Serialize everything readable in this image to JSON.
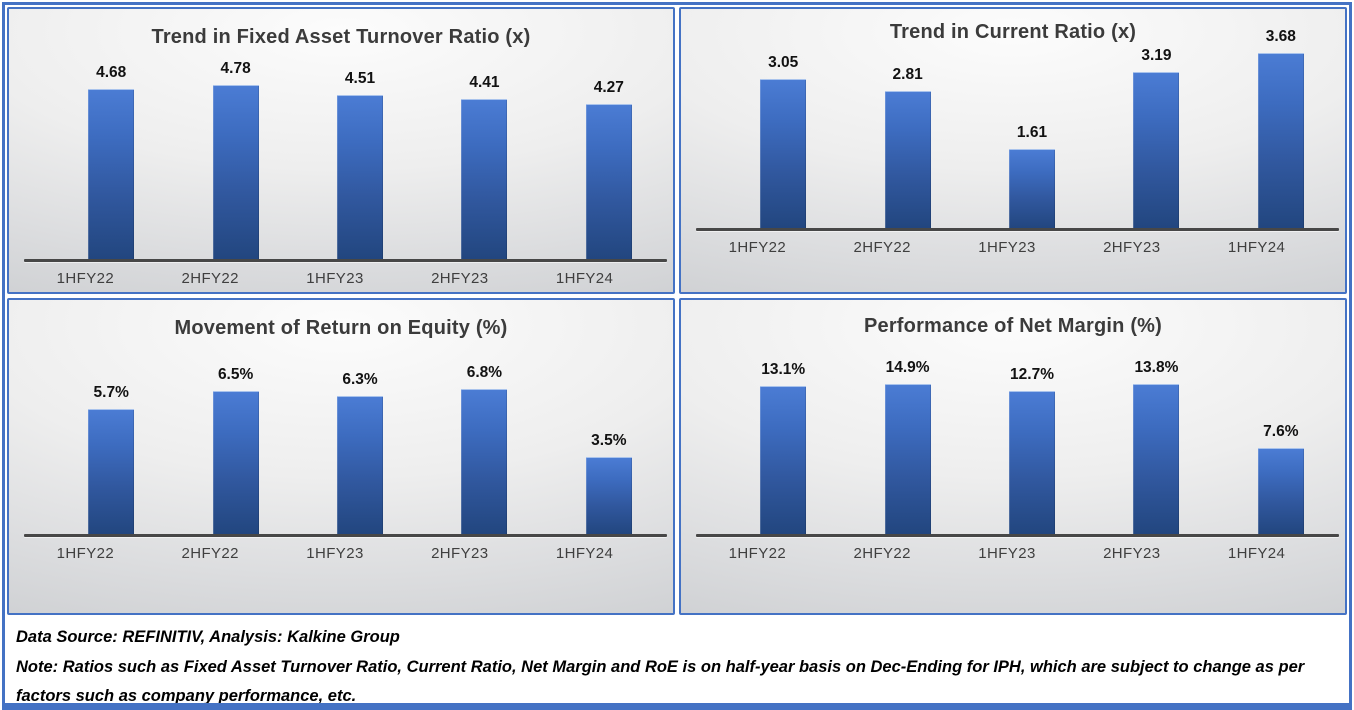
{
  "accent_color": "#4472c4",
  "bar_color_top": "#4b7cd4",
  "bar_color_bottom": "#22467f",
  "panel_bg_center": "#fcfcfc",
  "panel_bg_edge": "#c9cbce",
  "chart_data": [
    {
      "type": "bar",
      "title": "Trend in Fixed Asset Turnover Ratio (x)",
      "categories": [
        "1HFY22",
        "2HFY22",
        "1HFY23",
        "2HFY23",
        "1HFY24"
      ],
      "values": [
        4.68,
        4.78,
        4.51,
        4.41,
        4.27
      ],
      "labels": [
        "4.68",
        "4.78",
        "4.51",
        "4.41",
        "4.27"
      ],
      "xlabel": "",
      "ylabel": "",
      "ylim": [
        0,
        5.5
      ],
      "grid": false,
      "legend": "none",
      "data_labels": "above bars"
    },
    {
      "type": "bar",
      "title": "Trend in Current Ratio (x)",
      "categories": [
        "1HFY22",
        "2HFY22",
        "1HFY23",
        "2HFY23",
        "1HFY24"
      ],
      "values": [
        3.05,
        2.81,
        1.61,
        3.19,
        3.68
      ],
      "labels": [
        "3.05",
        "2.81",
        "1.61",
        "3.19",
        "3.68"
      ],
      "xlabel": "",
      "ylabel": "",
      "ylim": [
        0,
        4.1
      ],
      "grid": false,
      "legend": "none",
      "data_labels": "above bars"
    },
    {
      "type": "bar",
      "title": "Movement of Return on Equity (%)",
      "categories": [
        "1HFY22",
        "2HFY22",
        "1HFY23",
        "2HFY23",
        "1HFY24"
      ],
      "values": [
        5.7,
        6.5,
        6.3,
        6.8,
        3.5
      ],
      "labels": [
        "5.7%",
        "6.5%",
        "6.3%",
        "6.8%",
        "3.5%"
      ],
      "xlabel": "",
      "ylabel": "",
      "ylim": [
        0,
        7.75
      ],
      "grid": false,
      "legend": "none",
      "data_labels": "above bars"
    },
    {
      "type": "bar",
      "title": "Performance of Net Margin (%)",
      "categories": [
        "1HFY22",
        "2HFY22",
        "1HFY23",
        "2HFY23",
        "1HFY24"
      ],
      "values": [
        13.1,
        14.9,
        12.7,
        13.8,
        7.6
      ],
      "labels": [
        "13.1%",
        "14.9%",
        "12.7%",
        "13.8%",
        "7.6%"
      ],
      "xlabel": "",
      "ylabel": "",
      "ylim": [
        0,
        15.5
      ],
      "grid": false,
      "legend": "none",
      "data_labels": "above bars"
    }
  ],
  "footer": {
    "source": "Data Source: REFINITIV, Analysis: Kalkine Group",
    "note": "Note: Ratios such as Fixed Asset Turnover Ratio, Current Ratio, Net Margin and RoE is on half-year basis on Dec-Ending for IPH, which are subject to change as per factors such as company performance, etc."
  }
}
